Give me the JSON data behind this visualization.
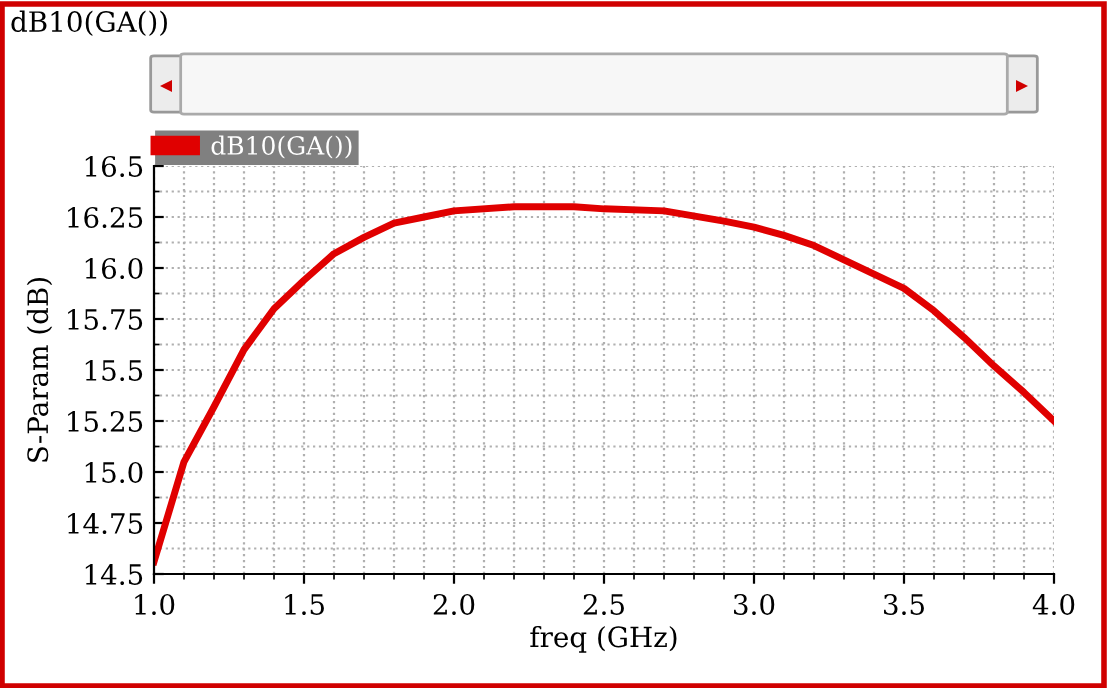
{
  "chart_data": {
    "type": "line",
    "title": "dB10(GA())",
    "xlabel": "freq (GHz)",
    "ylabel": "S-Param (dB)",
    "x": [
      1.0,
      1.1,
      1.2,
      1.3,
      1.4,
      1.5,
      1.6,
      1.7,
      1.8,
      1.9,
      2.0,
      2.2,
      2.4,
      2.5,
      2.7,
      2.9,
      3.0,
      3.1,
      3.2,
      3.3,
      3.4,
      3.5,
      3.6,
      3.7,
      3.8,
      3.9,
      4.0
    ],
    "series": [
      {
        "name": "dB10(GA())",
        "color": "#e00000",
        "values": [
          14.56,
          15.05,
          15.32,
          15.6,
          15.8,
          15.94,
          16.07,
          16.15,
          16.22,
          16.25,
          16.28,
          16.3,
          16.3,
          16.29,
          16.28,
          16.23,
          16.2,
          16.16,
          16.11,
          16.04,
          15.97,
          15.9,
          15.79,
          15.66,
          15.52,
          15.39,
          15.25
        ]
      }
    ],
    "xlim": [
      1.0,
      4.0
    ],
    "xticks": [
      {
        "value": 1.0,
        "label": "1.0"
      },
      1.5,
      {
        "value": 2.0,
        "label": "2.0"
      },
      2.5,
      {
        "value": 3.0,
        "label": "3.0"
      },
      3.5,
      {
        "value": 4.0,
        "label": "4.0"
      }
    ],
    "ylim": [
      14.5,
      16.5
    ],
    "yticks": [
      14.5,
      14.75,
      {
        "value": 15.0,
        "label": "15.0"
      },
      15.25,
      15.5,
      15.75,
      {
        "value": 16.0,
        "label": "16.0"
      },
      16.25,
      16.5
    ],
    "grid": true,
    "legend": "top left",
    "marker": "none",
    "line_style": "solid"
  }
}
